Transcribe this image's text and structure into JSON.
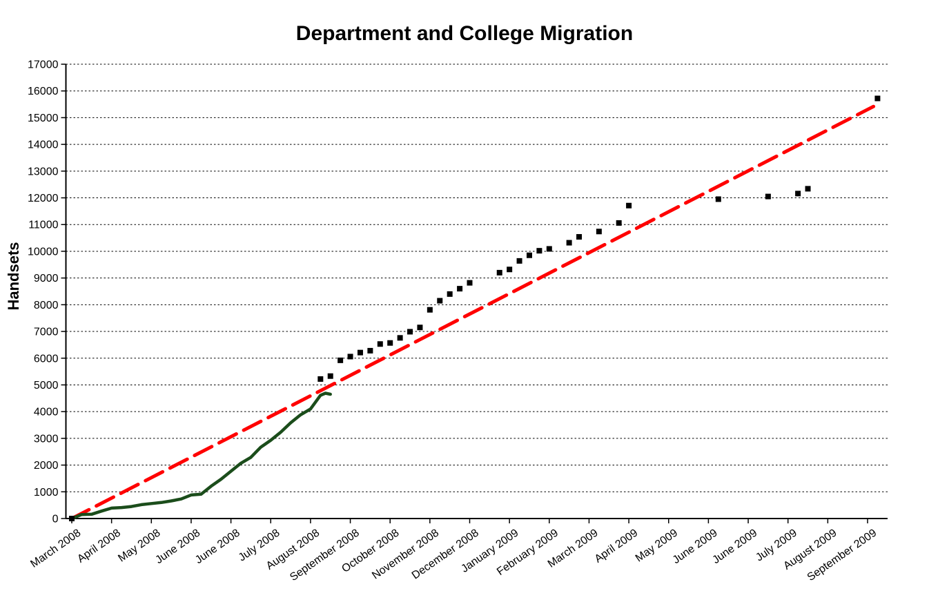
{
  "title": "Department and College Migration",
  "chart_data": {
    "type": "line",
    "title": "Department and College Migration",
    "xlabel": "",
    "ylabel": "Handsets",
    "ylim": [
      0,
      17000
    ],
    "y_tick_step": 1000,
    "y_tick_labels": [
      "0",
      "1000",
      "2000",
      "3000",
      "4000",
      "5000",
      "6000",
      "7000",
      "8000",
      "9000",
      "10000",
      "11000",
      "12000",
      "13000",
      "14000",
      "15000",
      "16000",
      "17000"
    ],
    "grid": "horizontal-dashed-black",
    "legend": "none",
    "x_axis_note": "weekly positions, one labeled tick every 4 weeks",
    "weeks_per_tick": 4,
    "x_total_weeks": 82,
    "x_tick_labels": [
      "March 2008",
      "April 2008",
      "May 2008",
      "June 2008",
      "June 2008",
      "July 2008",
      "August 2008",
      "September 2008",
      "October 2008",
      "November 2008",
      "December 2008",
      "January 2009",
      "February 2009",
      "March 2009",
      "April 2009",
      "May 2009",
      "June 2009",
      "June 2009",
      "July 2009",
      "August 2009",
      "September 2009"
    ],
    "series": [
      {
        "id": "red-dashed-line",
        "kind": "line-dashed",
        "color": "#FF0000",
        "stroke_width": 5,
        "points": [
          [
            0,
            0
          ],
          [
            80.6,
            15420
          ]
        ]
      },
      {
        "id": "green-solid-line",
        "kind": "line-solid",
        "color": "#1B4D1B",
        "stroke_width": 4.5,
        "points": [
          [
            0,
            0
          ],
          [
            1,
            150
          ],
          [
            2,
            160
          ],
          [
            3,
            280
          ],
          [
            4,
            390
          ],
          [
            5,
            410
          ],
          [
            6,
            450
          ],
          [
            7,
            520
          ],
          [
            8,
            560
          ],
          [
            9,
            600
          ],
          [
            10,
            660
          ],
          [
            11,
            730
          ],
          [
            12,
            880
          ],
          [
            13,
            910
          ],
          [
            14,
            1210
          ],
          [
            15,
            1470
          ],
          [
            16,
            1770
          ],
          [
            17,
            2070
          ],
          [
            18,
            2290
          ],
          [
            19,
            2670
          ],
          [
            20,
            2930
          ],
          [
            21,
            3230
          ],
          [
            22,
            3580
          ],
          [
            23,
            3880
          ],
          [
            24,
            4100
          ],
          [
            25,
            4610
          ],
          [
            25.5,
            4690
          ],
          [
            26,
            4650
          ]
        ]
      },
      {
        "id": "black-square-points",
        "kind": "scatter-square",
        "color": "#000000",
        "marker_size": 8,
        "points": [
          [
            0,
            0
          ],
          [
            25,
            5220
          ],
          [
            26,
            5330
          ],
          [
            27,
            5920
          ],
          [
            28,
            6060
          ],
          [
            29,
            6210
          ],
          [
            30,
            6280
          ],
          [
            31,
            6530
          ],
          [
            32,
            6570
          ],
          [
            33,
            6760
          ],
          [
            34,
            6990
          ],
          [
            35,
            7150
          ],
          [
            36,
            7810
          ],
          [
            37,
            8150
          ],
          [
            38,
            8400
          ],
          [
            39,
            8600
          ],
          [
            40,
            8820
          ],
          [
            43,
            9200
          ],
          [
            44,
            9320
          ],
          [
            45,
            9640
          ],
          [
            46,
            9850
          ],
          [
            47,
            10020
          ],
          [
            48,
            10090
          ],
          [
            50,
            10320
          ],
          [
            51,
            10540
          ],
          [
            53,
            10740
          ],
          [
            55,
            11060
          ],
          [
            56,
            11710
          ],
          [
            65,
            11950
          ],
          [
            70,
            12050
          ],
          [
            73,
            12160
          ],
          [
            74,
            12340
          ],
          [
            81,
            15720
          ]
        ]
      }
    ]
  }
}
